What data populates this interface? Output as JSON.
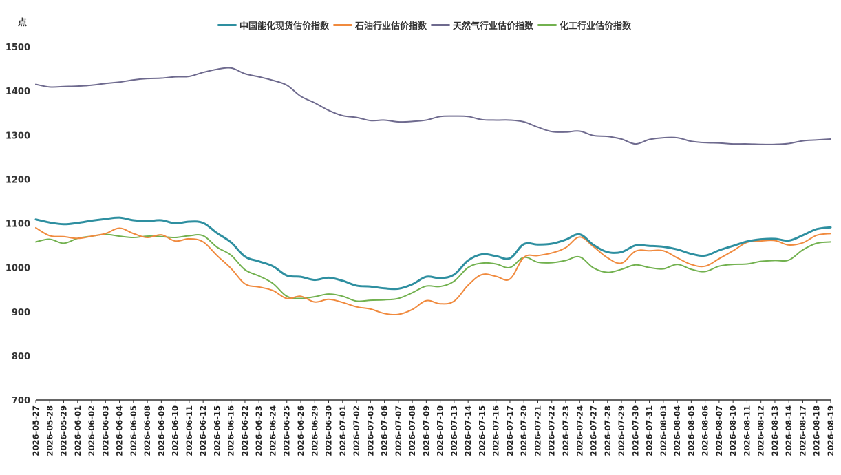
{
  "chart_data": {
    "type": "line",
    "unit": "点",
    "ylim": [
      700,
      1500
    ],
    "yticks": [
      700,
      800,
      900,
      1000,
      1100,
      1200,
      1300,
      1400,
      1500
    ],
    "grid": false,
    "legend_position": "top",
    "x": [
      "2026-05-27",
      "2026-05-28",
      "2026-05-29",
      "2026-06-01",
      "2026-06-02",
      "2026-06-03",
      "2026-06-04",
      "2026-06-05",
      "2026-06-08",
      "2026-06-09",
      "2026-06-10",
      "2026-06-11",
      "2026-06-12",
      "2026-06-15",
      "2026-06-16",
      "2026-06-22",
      "2026-06-23",
      "2026-06-24",
      "2026-06-25",
      "2026-06-26",
      "2026-06-29",
      "2026-06-30",
      "2026-07-01",
      "2026-07-02",
      "2026-07-03",
      "2026-07-06",
      "2026-07-07",
      "2026-07-08",
      "2026-07-09",
      "2026-07-10",
      "2026-07-13",
      "2026-07-14",
      "2026-07-15",
      "2026-07-16",
      "2026-07-17",
      "2026-07-20",
      "2026-07-21",
      "2026-07-22",
      "2026-07-23",
      "2026-07-24",
      "2026-07-27",
      "2026-07-28",
      "2026-07-29",
      "2026-07-30",
      "2026-07-31",
      "2026-08-03",
      "2026-08-04",
      "2026-08-05",
      "2026-08-06",
      "2026-08-07",
      "2026-08-10",
      "2026-08-11",
      "2026-08-12",
      "2026-08-13",
      "2026-08-14",
      "2026-08-17",
      "2026-08-18",
      "2026-08-19"
    ],
    "series": [
      {
        "name": "中国能化现货估价指数",
        "color": "#2e8fa0",
        "values": [
          1109,
          1102,
          1098,
          1101,
          1106,
          1110,
          1113,
          1107,
          1105,
          1107,
          1100,
          1104,
          1101,
          1078,
          1057,
          1025,
          1014,
          1003,
          982,
          979,
          972,
          977,
          970,
          959,
          957,
          953,
          952,
          962,
          979,
          976,
          984,
          1016,
          1030,
          1026,
          1021,
          1053,
          1052,
          1054,
          1063,
          1075,
          1051,
          1035,
          1035,
          1050,
          1049,
          1047,
          1041,
          1031,
          1027,
          1039,
          1049,
          1059,
          1064,
          1065,
          1061,
          1073,
          1087,
          1091
        ]
      },
      {
        "name": "石油行业估价指数",
        "color": "#f08a3e",
        "values": [
          1090,
          1072,
          1070,
          1066,
          1071,
          1077,
          1089,
          1077,
          1068,
          1074,
          1060,
          1065,
          1058,
          1027,
          998,
          963,
          956,
          948,
          930,
          935,
          922,
          928,
          921,
          911,
          906,
          896,
          894,
          905,
          925,
          918,
          924,
          960,
          984,
          980,
          974,
          1023,
          1027,
          1033,
          1045,
          1069,
          1047,
          1022,
          1010,
          1037,
          1038,
          1038,
          1022,
          1007,
          1003,
          1020,
          1038,
          1057,
          1060,
          1061,
          1051,
          1056,
          1073,
          1077
        ]
      },
      {
        "name": "天然气行业估价指数",
        "color": "#6e6a8e",
        "values": [
          1415,
          1409,
          1410,
          1411,
          1413,
          1417,
          1420,
          1425,
          1428,
          1429,
          1432,
          1433,
          1442,
          1449,
          1452,
          1439,
          1432,
          1424,
          1413,
          1388,
          1373,
          1356,
          1344,
          1340,
          1333,
          1334,
          1330,
          1331,
          1334,
          1342,
          1343,
          1342,
          1335,
          1334,
          1334,
          1330,
          1318,
          1308,
          1307,
          1309,
          1299,
          1297,
          1291,
          1280,
          1290,
          1294,
          1294,
          1286,
          1283,
          1282,
          1280,
          1280,
          1279,
          1279,
          1281,
          1287,
          1289,
          1291
        ]
      },
      {
        "name": "化工行业估价指数",
        "color": "#72b14f",
        "values": [
          1058,
          1064,
          1055,
          1066,
          1071,
          1075,
          1071,
          1068,
          1071,
          1070,
          1068,
          1072,
          1072,
          1046,
          1028,
          995,
          981,
          964,
          935,
          930,
          934,
          940,
          935,
          924,
          926,
          927,
          930,
          943,
          958,
          957,
          969,
          1000,
          1010,
          1008,
          1000,
          1023,
          1012,
          1011,
          1016,
          1024,
          999,
          989,
          996,
          1006,
          1000,
          997,
          1007,
          996,
          991,
          1003,
          1007,
          1008,
          1014,
          1016,
          1017,
          1040,
          1055,
          1058
        ]
      }
    ]
  }
}
